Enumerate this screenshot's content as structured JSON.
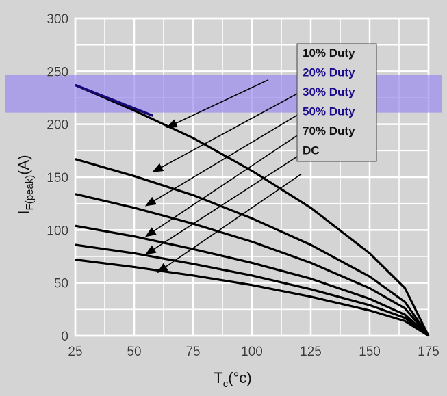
{
  "chart_data": {
    "type": "line",
    "title": "",
    "xlabel": {
      "main": "T",
      "sub": "c",
      "unit": "(°c)"
    },
    "ylabel": {
      "main": "I",
      "sub": "F(peak)",
      "unit": "(A)"
    },
    "xlim": [
      25,
      175
    ],
    "ylim": [
      0,
      300
    ],
    "xticks": [
      "25",
      "50",
      "75",
      "100",
      "125",
      "150",
      "175"
    ],
    "yticks": [
      "0",
      "50",
      "100",
      "150",
      "200",
      "250",
      "300"
    ],
    "grid": true,
    "legend_placement": "top-right",
    "series": [
      {
        "name": "10% Duty",
        "x": [
          25,
          50,
          75,
          100,
          125,
          150,
          165,
          175
        ],
        "values": [
          237,
          213,
          187,
          156,
          121,
          78,
          45,
          0
        ]
      },
      {
        "name": "20% Duty",
        "x": [
          25,
          50,
          75,
          100,
          125,
          150,
          165,
          175
        ],
        "values": [
          167,
          151,
          133,
          111,
          86,
          56,
          32,
          0
        ]
      },
      {
        "name": "30% Duty",
        "x": [
          25,
          50,
          75,
          100,
          125,
          150,
          165,
          175
        ],
        "values": [
          134,
          121,
          106,
          89,
          69,
          45,
          26,
          0
        ]
      },
      {
        "name": "50% Duty",
        "x": [
          25,
          50,
          75,
          100,
          125,
          150,
          165,
          175
        ],
        "values": [
          104,
          94,
          82,
          69,
          54,
          35,
          20,
          0
        ]
      },
      {
        "name": "70% Duty",
        "x": [
          25,
          50,
          75,
          100,
          125,
          150,
          165,
          175
        ],
        "values": [
          86,
          78,
          68,
          57,
          44,
          29,
          17,
          0
        ]
      },
      {
        "name": "DC",
        "x": [
          25,
          50,
          75,
          100,
          125,
          150,
          165,
          175
        ],
        "values": [
          72,
          65,
          57,
          48,
          37,
          24,
          14,
          0
        ]
      }
    ],
    "legend_colors": [
      "#111111",
      "#1a0a8c",
      "#1a0a8c",
      "#1a0a8c",
      "#111111",
      "#111111"
    ],
    "annotation_arrows": [
      {
        "from": [
          107,
          242
        ],
        "to": [
          64,
          197
        ]
      },
      {
        "from": [
          121,
          231
        ],
        "to": [
          58,
          155
        ]
      },
      {
        "from": [
          121,
          211
        ],
        "to": [
          55,
          123
        ]
      },
      {
        "from": [
          121,
          192
        ],
        "to": [
          55,
          94
        ]
      },
      {
        "from": [
          121,
          172
        ],
        "to": [
          55,
          77
        ]
      },
      {
        "from": [
          121,
          153
        ],
        "to": [
          60,
          60
        ]
      }
    ],
    "highlight_band": {
      "ymin": 211,
      "ymax": 247,
      "color": "#9b8cf0"
    }
  }
}
